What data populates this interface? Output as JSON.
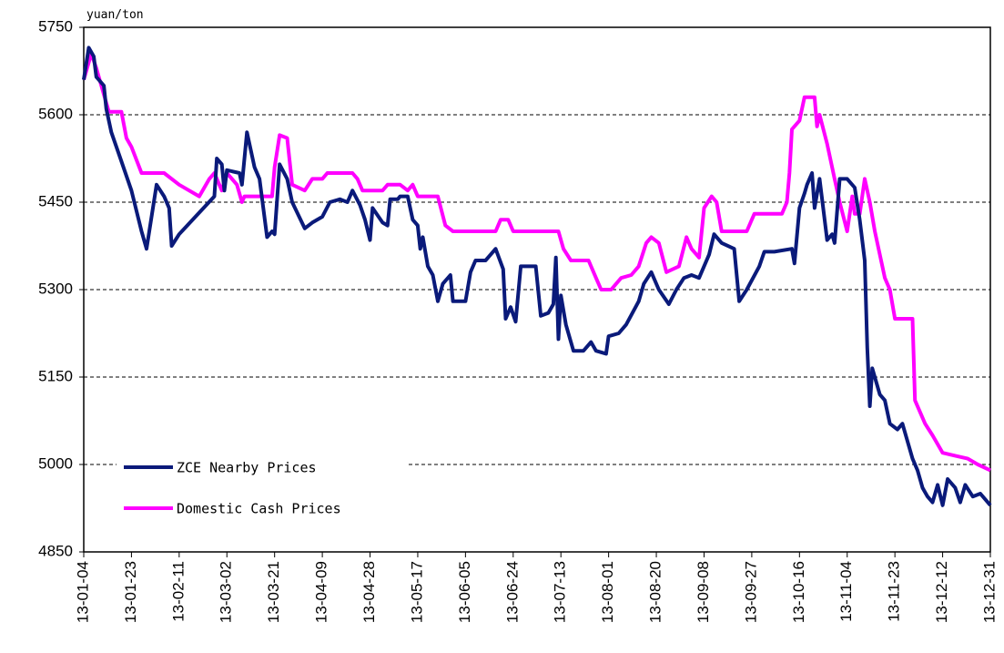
{
  "chart_data": {
    "type": "line",
    "y_unit": "yuan/ton",
    "xlim": [
      "13-01-04",
      "13-12-31"
    ],
    "xticks": [
      "13-01-04",
      "13-01-23",
      "13-02-11",
      "13-03-02",
      "13-03-21",
      "13-04-09",
      "13-04-28",
      "13-05-17",
      "13-06-05",
      "13-06-24",
      "13-07-13",
      "13-08-01",
      "13-08-20",
      "13-09-08",
      "13-09-27",
      "13-10-16",
      "13-11-04",
      "13-11-23",
      "13-12-12",
      "13-12-31"
    ],
    "ylim": [
      4850,
      5750
    ],
    "yticks": [
      4850,
      5000,
      5150,
      5300,
      5450,
      5600,
      5750
    ],
    "grid": true,
    "legend": "lower left",
    "series": [
      {
        "name": "ZCE Nearby Prices",
        "color": "#0a1a7a",
        "x": [
          "13-01-04",
          "13-01-06",
          "13-01-08",
          "13-01-09",
          "13-01-12",
          "13-01-13",
          "13-01-15",
          "13-01-19",
          "13-01-23",
          "13-01-27",
          "13-01-29",
          "13-02-02",
          "13-02-05",
          "13-02-07",
          "13-02-08",
          "13-02-11",
          "13-02-25",
          "13-02-26",
          "13-02-28",
          "13-03-01",
          "13-03-02",
          "13-03-07",
          "13-03-08",
          "13-03-10",
          "13-03-13",
          "13-03-15",
          "13-03-18",
          "13-03-20",
          "13-03-21",
          "13-03-23",
          "13-03-26",
          "13-03-28",
          "13-04-02",
          "13-04-05",
          "13-04-09",
          "13-04-12",
          "13-04-16",
          "13-04-19",
          "13-04-21",
          "13-04-24",
          "13-04-26",
          "13-04-28",
          "13-04-29",
          "13-05-03",
          "13-05-05",
          "13-05-06",
          "13-05-09",
          "13-05-10",
          "13-05-13",
          "13-05-15",
          "13-05-17",
          "13-05-18",
          "13-05-19",
          "13-05-21",
          "13-05-23",
          "13-05-25",
          "13-05-27",
          "13-05-30",
          "13-05-31",
          "13-06-05",
          "13-06-07",
          "13-06-09",
          "13-06-13",
          "13-06-15",
          "13-06-17",
          "13-06-20",
          "13-06-21",
          "13-06-23",
          "13-06-25",
          "13-06-27",
          "13-07-03",
          "13-07-05",
          "13-07-08",
          "13-07-10",
          "13-07-11",
          "13-07-12",
          "13-07-13",
          "13-07-15",
          "13-07-18",
          "13-07-22",
          "13-07-25",
          "13-07-27",
          "13-07-31",
          "13-08-01",
          "13-08-05",
          "13-08-08",
          "13-08-13",
          "13-08-15",
          "13-08-18",
          "13-08-21",
          "13-08-25",
          "13-08-28",
          "13-08-31",
          "13-09-03",
          "13-09-06",
          "13-09-10",
          "13-09-12",
          "13-09-15",
          "13-09-20",
          "13-09-22",
          "13-09-25",
          "13-09-30",
          "13-10-02",
          "13-10-06",
          "13-10-13",
          "13-10-14",
          "13-10-16",
          "13-10-18",
          "13-10-19",
          "13-10-21",
          "13-10-22",
          "13-10-24",
          "13-10-27",
          "13-10-29",
          "13-10-30",
          "13-11-01",
          "13-11-04",
          "13-11-07",
          "13-11-09",
          "13-11-11",
          "13-11-12",
          "13-11-13",
          "13-11-14",
          "13-11-17",
          "13-11-19",
          "13-11-21",
          "13-11-24",
          "13-11-26",
          "13-11-30",
          "13-12-02",
          "13-12-04",
          "13-12-06",
          "13-12-08",
          "13-12-10",
          "13-12-12",
          "13-12-14",
          "13-12-17",
          "13-12-19",
          "13-12-21",
          "13-12-24",
          "13-12-27",
          "13-12-31"
        ],
        "values": [
          5660,
          5715,
          5700,
          5665,
          5650,
          5610,
          5570,
          5520,
          5470,
          5400,
          5370,
          5480,
          5460,
          5440,
          5375,
          5395,
          5460,
          5525,
          5515,
          5470,
          5505,
          5500,
          5480,
          5570,
          5510,
          5490,
          5390,
          5400,
          5395,
          5515,
          5490,
          5450,
          5405,
          5415,
          5425,
          5450,
          5455,
          5450,
          5470,
          5445,
          5420,
          5385,
          5440,
          5415,
          5410,
          5455,
          5455,
          5460,
          5460,
          5420,
          5410,
          5370,
          5390,
          5340,
          5325,
          5280,
          5310,
          5325,
          5280,
          5280,
          5330,
          5350,
          5350,
          5360,
          5370,
          5335,
          5250,
          5270,
          5245,
          5340,
          5340,
          5255,
          5260,
          5275,
          5355,
          5215,
          5290,
          5240,
          5195,
          5195,
          5210,
          5195,
          5190,
          5220,
          5225,
          5240,
          5280,
          5310,
          5330,
          5300,
          5275,
          5300,
          5320,
          5325,
          5320,
          5360,
          5395,
          5380,
          5370,
          5280,
          5300,
          5340,
          5365,
          5365,
          5370,
          5345,
          5440,
          5465,
          5480,
          5500,
          5440,
          5490,
          5385,
          5395,
          5380,
          5490,
          5490,
          5475,
          5420,
          5350,
          5200,
          5100,
          5165,
          5120,
          5110,
          5070,
          5060,
          5070,
          5010,
          4990,
          4960,
          4945,
          4935,
          4965,
          4930,
          4975,
          4960,
          4935,
          4965,
          4945,
          4950,
          4930
        ]
      },
      {
        "name": "Domestic Cash Prices",
        "color": "#ff00ff",
        "x": [
          "13-01-04",
          "13-01-07",
          "13-01-09",
          "13-01-11",
          "13-01-14",
          "13-01-19",
          "13-01-21",
          "13-01-23",
          "13-01-27",
          "13-02-05",
          "13-02-11",
          "13-02-19",
          "13-02-23",
          "13-02-25",
          "13-02-28",
          "13-03-02",
          "13-03-06",
          "13-03-08",
          "13-03-09",
          "13-03-20",
          "13-03-21",
          "13-03-23",
          "13-03-26",
          "13-03-28",
          "13-04-02",
          "13-04-05",
          "13-04-09",
          "13-04-11",
          "13-04-21",
          "13-04-23",
          "13-04-25",
          "13-05-03",
          "13-05-05",
          "13-05-10",
          "13-05-13",
          "13-05-15",
          "13-05-17",
          "13-05-25",
          "13-05-28",
          "13-05-31",
          "13-06-17",
          "13-06-19",
          "13-06-22",
          "13-06-24",
          "13-07-12",
          "13-07-14",
          "13-07-17",
          "13-07-24",
          "13-07-27",
          "13-07-29",
          "13-08-02",
          "13-08-06",
          "13-08-10",
          "13-08-13",
          "13-08-16",
          "13-08-18",
          "13-08-21",
          "13-08-24",
          "13-08-29",
          "13-09-01",
          "13-09-03",
          "13-09-06",
          "13-09-08",
          "13-09-11",
          "13-09-13",
          "13-09-15",
          "13-09-25",
          "13-09-28",
          "13-10-09",
          "13-10-11",
          "13-10-12",
          "13-10-13",
          "13-10-16",
          "13-10-18",
          "13-10-22",
          "13-10-23",
          "13-10-24",
          "13-10-27",
          "13-10-30",
          "13-11-01",
          "13-11-04",
          "13-11-06",
          "13-11-07",
          "13-11-09",
          "13-11-11",
          "13-11-13",
          "13-11-15",
          "13-11-19",
          "13-11-21",
          "13-11-23",
          "13-11-30",
          "13-12-01",
          "13-12-05",
          "13-12-08",
          "13-12-12",
          "13-12-17",
          "13-12-22",
          "13-12-26",
          "13-12-31"
        ],
        "values": [
          5660,
          5705,
          5680,
          5650,
          5605,
          5605,
          5560,
          5545,
          5500,
          5500,
          5480,
          5460,
          5490,
          5500,
          5470,
          5500,
          5480,
          5450,
          5460,
          5460,
          5510,
          5565,
          5560,
          5480,
          5470,
          5490,
          5490,
          5500,
          5500,
          5490,
          5470,
          5470,
          5480,
          5480,
          5470,
          5480,
          5460,
          5460,
          5410,
          5400,
          5400,
          5420,
          5420,
          5400,
          5400,
          5370,
          5350,
          5350,
          5320,
          5300,
          5300,
          5320,
          5325,
          5340,
          5380,
          5390,
          5380,
          5330,
          5340,
          5390,
          5370,
          5355,
          5440,
          5460,
          5450,
          5400,
          5400,
          5430,
          5430,
          5450,
          5500,
          5575,
          5590,
          5630,
          5630,
          5580,
          5600,
          5550,
          5490,
          5450,
          5400,
          5460,
          5430,
          5430,
          5490,
          5450,
          5400,
          5320,
          5300,
          5250,
          5250,
          5110,
          5070,
          5050,
          5020,
          5015,
          5010,
          5000,
          4990
        ]
      }
    ]
  }
}
